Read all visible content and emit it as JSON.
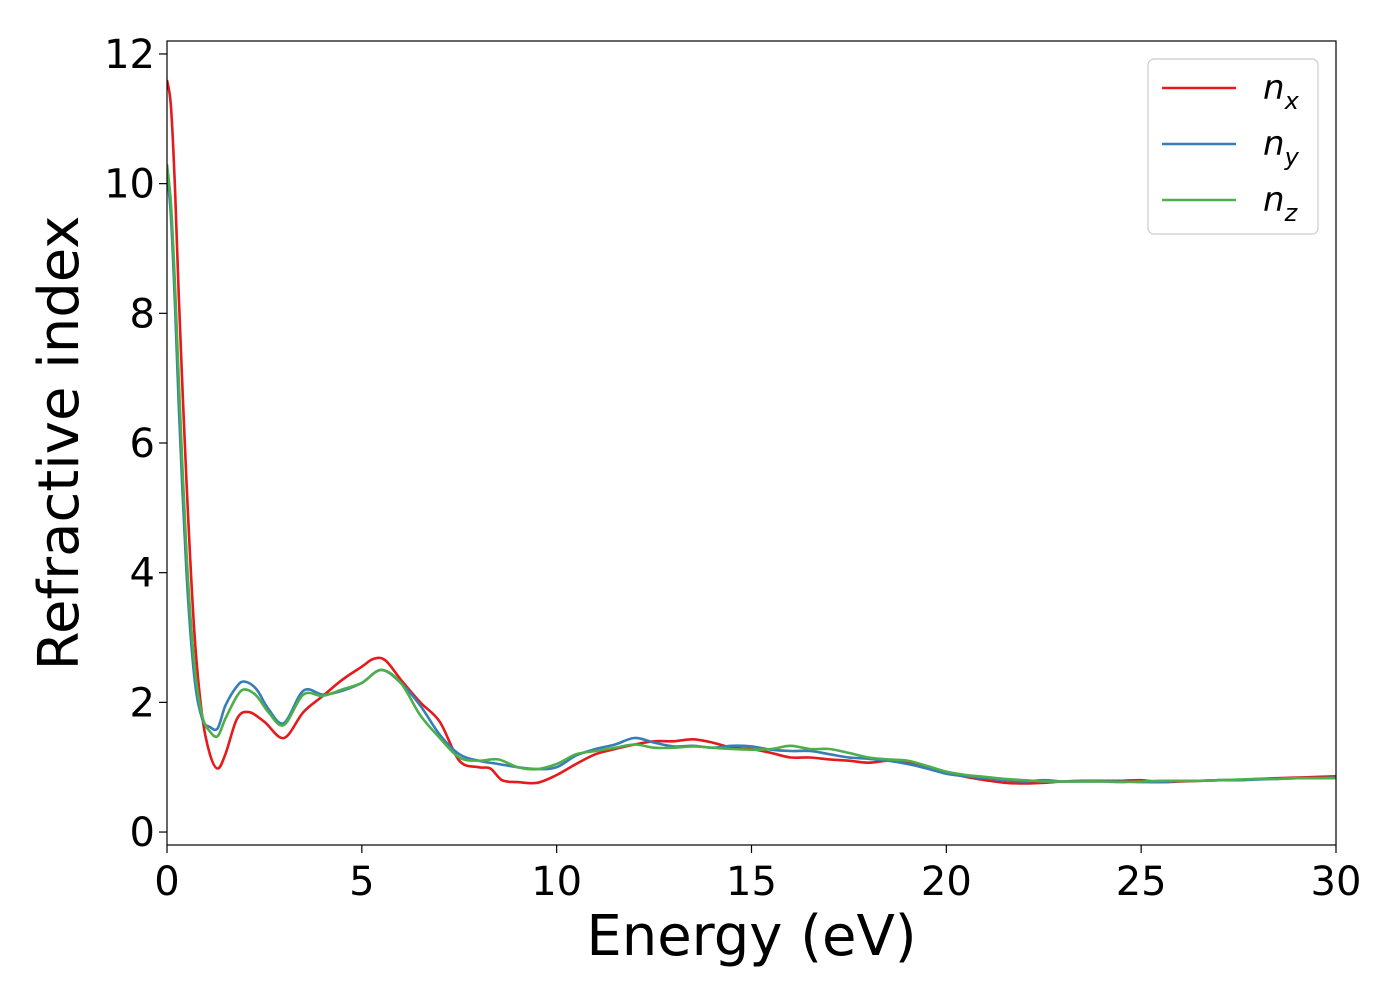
{
  "chart_data": {
    "type": "line",
    "title": "",
    "xlabel": "Energy (eV)",
    "ylabel": "Refractive index",
    "xlim": [
      0,
      30
    ],
    "ylim": [
      -0.2,
      12.2
    ],
    "xticks": [
      0,
      5,
      10,
      15,
      20,
      25,
      30
    ],
    "yticks": [
      0,
      2,
      4,
      6,
      8,
      10,
      12
    ],
    "grid": false,
    "legend_position": "top-right",
    "series": [
      {
        "name": "n",
        "subscript": "x",
        "color": "#e41a1c",
        "x": [
          0,
          0.1,
          0.2,
          0.3,
          0.5,
          0.7,
          0.9,
          1.1,
          1.3,
          1.5,
          1.8,
          2.1,
          2.5,
          3.0,
          3.5,
          4.0,
          4.5,
          5.0,
          5.3,
          5.6,
          6.0,
          6.5,
          7.0,
          7.5,
          8.0,
          8.3,
          8.6,
          9.0,
          9.5,
          10.0,
          10.5,
          11.0,
          11.5,
          12.0,
          12.5,
          13.0,
          13.5,
          14.0,
          14.5,
          15.0,
          15.5,
          16.0,
          16.5,
          17.0,
          17.5,
          18.0,
          18.5,
          19.0,
          19.5,
          20.0,
          20.5,
          21.0,
          21.5,
          22.0,
          22.5,
          23.0,
          23.5,
          24.0,
          24.5,
          25.0,
          25.5,
          26.0,
          26.5,
          27.0,
          27.5,
          28.0,
          28.5,
          29.0,
          29.5,
          30.0
        ],
        "y": [
          11.6,
          11.2,
          10.0,
          8.3,
          5.4,
          3.1,
          1.8,
          1.2,
          0.98,
          1.2,
          1.75,
          1.85,
          1.7,
          1.45,
          1.85,
          2.1,
          2.35,
          2.55,
          2.67,
          2.65,
          2.35,
          2.0,
          1.7,
          1.1,
          1.0,
          0.98,
          0.8,
          0.77,
          0.76,
          0.88,
          1.05,
          1.2,
          1.28,
          1.35,
          1.4,
          1.4,
          1.43,
          1.38,
          1.3,
          1.28,
          1.22,
          1.15,
          1.15,
          1.12,
          1.1,
          1.07,
          1.1,
          1.08,
          1.0,
          0.92,
          0.85,
          0.8,
          0.76,
          0.75,
          0.76,
          0.78,
          0.79,
          0.79,
          0.79,
          0.8,
          0.77,
          0.78,
          0.79,
          0.8,
          0.8,
          0.82,
          0.83,
          0.84,
          0.85,
          0.86
        ]
      },
      {
        "name": "n",
        "subscript": "y",
        "color": "#377eb8",
        "x": [
          0,
          0.1,
          0.2,
          0.3,
          0.5,
          0.7,
          0.9,
          1.1,
          1.3,
          1.5,
          1.8,
          2.0,
          2.3,
          2.6,
          3.0,
          3.5,
          4.0,
          4.5,
          5.0,
          5.5,
          6.0,
          6.5,
          7.0,
          7.5,
          8.0,
          8.5,
          9.0,
          9.5,
          10.0,
          10.5,
          11.0,
          11.5,
          12.0,
          12.5,
          13.0,
          13.5,
          14.0,
          14.5,
          15.0,
          15.5,
          16.0,
          16.5,
          17.0,
          17.5,
          18.0,
          18.5,
          19.0,
          19.5,
          20.0,
          20.5,
          21.0,
          21.5,
          22.0,
          22.5,
          23.0,
          23.5,
          24.0,
          24.5,
          25.0,
          25.5,
          26.0,
          26.5,
          27.0,
          27.5,
          28.0,
          28.5,
          29.0,
          29.5,
          30.0
        ],
        "y": [
          10.2,
          9.5,
          8.2,
          6.6,
          4.0,
          2.4,
          1.75,
          1.62,
          1.6,
          1.95,
          2.25,
          2.32,
          2.2,
          1.9,
          1.68,
          2.18,
          2.12,
          2.18,
          2.3,
          2.5,
          2.3,
          1.95,
          1.5,
          1.2,
          1.1,
          1.05,
          1.0,
          0.97,
          1.0,
          1.18,
          1.28,
          1.35,
          1.45,
          1.38,
          1.32,
          1.33,
          1.3,
          1.33,
          1.32,
          1.27,
          1.25,
          1.25,
          1.2,
          1.15,
          1.13,
          1.1,
          1.05,
          0.98,
          0.9,
          0.86,
          0.83,
          0.8,
          0.78,
          0.8,
          0.78,
          0.78,
          0.78,
          0.78,
          0.77,
          0.77,
          0.79,
          0.79,
          0.8,
          0.8,
          0.81,
          0.82,
          0.83,
          0.83,
          0.84
        ]
      },
      {
        "name": "n",
        "subscript": "z",
        "color": "#4daf4a",
        "x": [
          0,
          0.1,
          0.2,
          0.3,
          0.5,
          0.7,
          0.9,
          1.1,
          1.3,
          1.5,
          1.8,
          2.0,
          2.3,
          2.6,
          3.0,
          3.5,
          4.0,
          4.5,
          5.0,
          5.5,
          6.0,
          6.5,
          7.0,
          7.5,
          8.0,
          8.5,
          9.0,
          9.5,
          10.0,
          10.5,
          11.0,
          11.5,
          12.0,
          12.5,
          13.0,
          13.5,
          14.0,
          14.5,
          15.0,
          15.5,
          16.0,
          16.5,
          17.0,
          17.5,
          18.0,
          18.5,
          19.0,
          19.5,
          20.0,
          20.5,
          21.0,
          21.5,
          22.0,
          22.5,
          23.0,
          23.5,
          24.0,
          24.5,
          25.0,
          25.5,
          26.0,
          26.5,
          27.0,
          27.5,
          28.0,
          28.5,
          29.0,
          29.5,
          30.0
        ],
        "y": [
          10.3,
          9.7,
          8.5,
          7.0,
          4.3,
          2.6,
          1.8,
          1.55,
          1.48,
          1.75,
          2.1,
          2.2,
          2.1,
          1.85,
          1.65,
          2.12,
          2.1,
          2.2,
          2.3,
          2.5,
          2.3,
          1.8,
          1.45,
          1.15,
          1.1,
          1.12,
          1.0,
          0.97,
          1.05,
          1.2,
          1.25,
          1.3,
          1.35,
          1.3,
          1.3,
          1.32,
          1.3,
          1.28,
          1.27,
          1.28,
          1.33,
          1.28,
          1.28,
          1.22,
          1.15,
          1.12,
          1.1,
          1.02,
          0.93,
          0.88,
          0.85,
          0.82,
          0.8,
          0.78,
          0.78,
          0.78,
          0.78,
          0.77,
          0.78,
          0.79,
          0.79,
          0.79,
          0.8,
          0.81,
          0.82,
          0.82,
          0.83,
          0.83,
          0.83
        ]
      }
    ]
  }
}
